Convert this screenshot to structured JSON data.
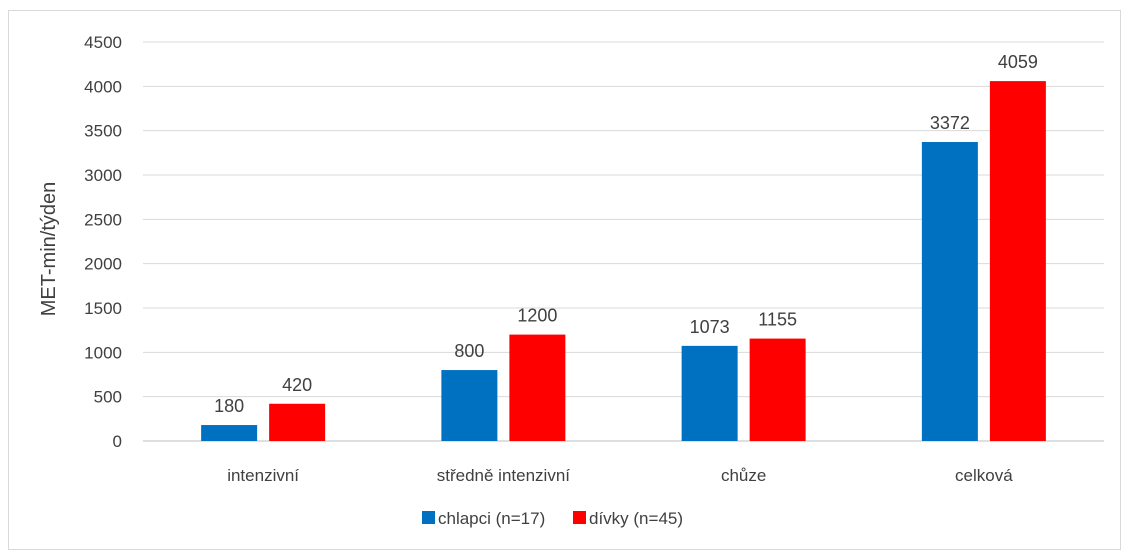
{
  "chart_data": {
    "type": "bar",
    "title": "",
    "xlabel": "",
    "ylabel": "MET-min/týden",
    "ylim": [
      0,
      4500
    ],
    "yticks": [
      0,
      500,
      1000,
      1500,
      2000,
      2500,
      3000,
      3500,
      4000,
      4500
    ],
    "grid": true,
    "legend_position": "bottom",
    "categories": [
      "intenzivní",
      "středně intenzivní",
      "chůze",
      "celková"
    ],
    "series": [
      {
        "name": "chlapci (n=17)",
        "color": "#0070C0",
        "values": [
          180,
          800,
          1073,
          3372
        ],
        "labels": [
          "180",
          "800",
          "1073",
          "3372"
        ]
      },
      {
        "name": "dívky (n=45)",
        "color": "#FF0000",
        "values": [
          420,
          1200,
          1155,
          4059
        ],
        "labels": [
          "420",
          "1200",
          "1155",
          "4059"
        ]
      }
    ]
  }
}
